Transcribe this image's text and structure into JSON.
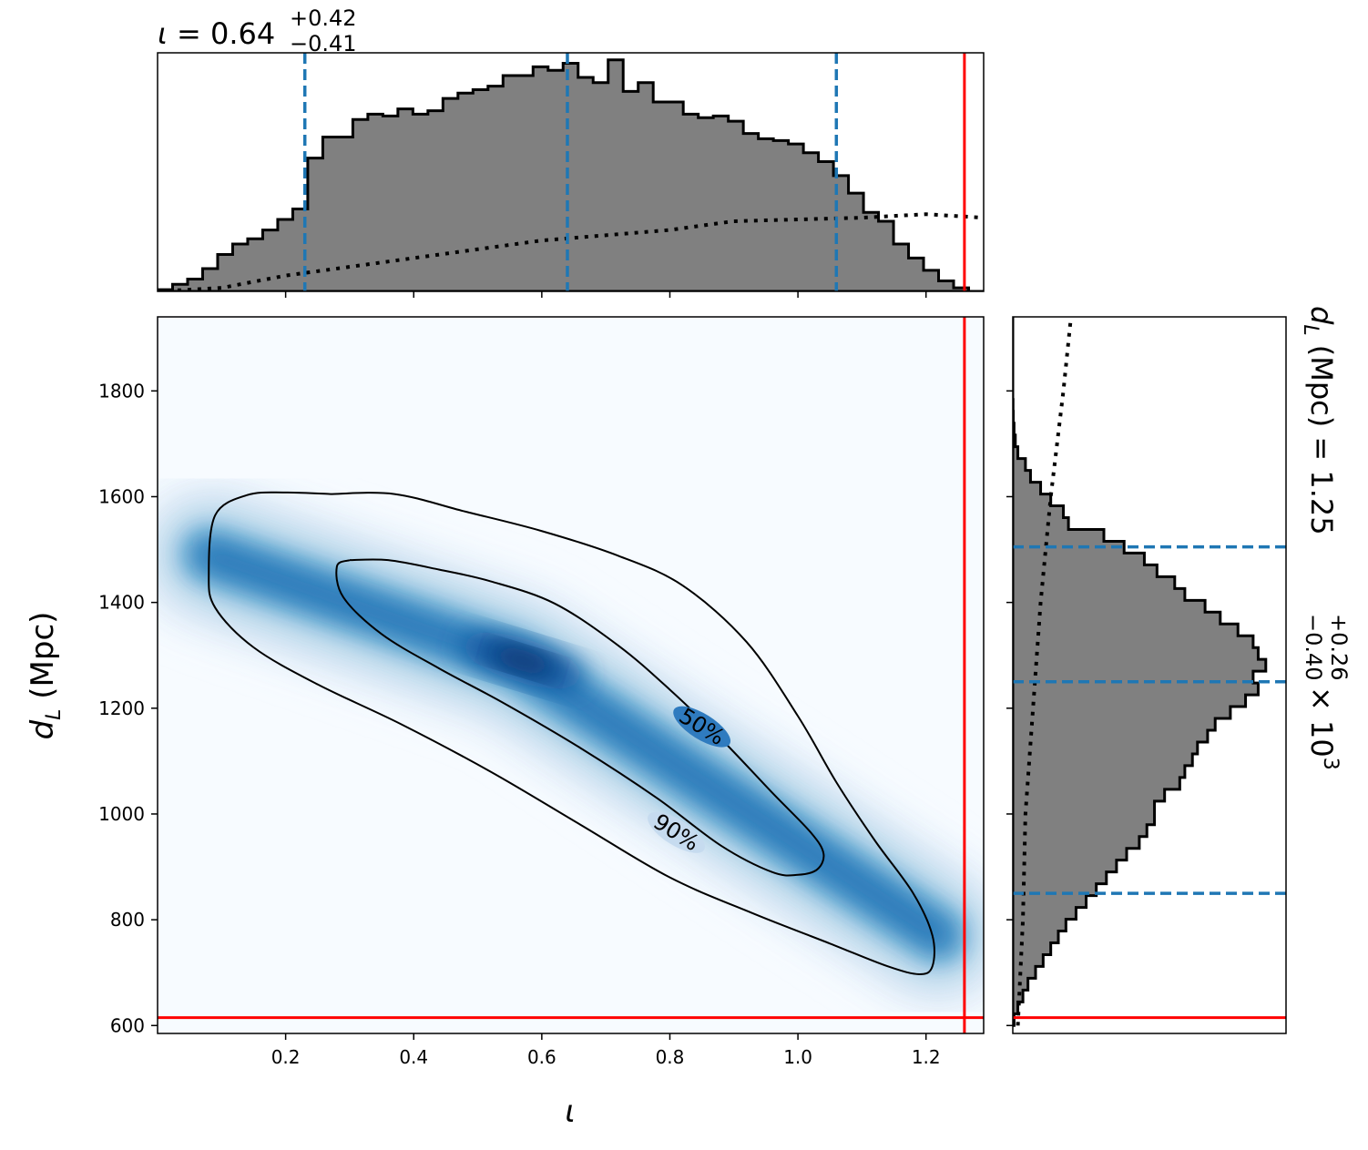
{
  "figure": {
    "top_title": {
      "symbol": "ι",
      "eq": " = ",
      "median": "0.64",
      "plus": "+0.42",
      "minus": "−0.41"
    },
    "side_title": {
      "symbol": "d",
      "sub": "L",
      "units": " (Mpc) = 1.25",
      "plus": "+0.26",
      "minus": "−0.40",
      "times": " × 10",
      "exp": "3"
    },
    "xlabel": "ι",
    "ylabel": {
      "symbol": "d",
      "sub": "L",
      "units": " (Mpc)"
    }
  },
  "chart_data": [
    {
      "name": "iota-marginal",
      "type": "bar",
      "bin_edges": [
        0.0,
        1.29
      ],
      "counts": [
        0.01,
        0.04,
        0.07,
        0.13,
        0.21,
        0.27,
        0.3,
        0.35,
        0.41,
        0.47,
        0.76,
        0.88,
        0.88,
        0.98,
        1.01,
        1.0,
        1.04,
        1.01,
        1.03,
        1.1,
        1.13,
        1.15,
        1.17,
        1.23,
        1.23,
        1.28,
        1.26,
        1.3,
        1.22,
        1.19,
        1.32,
        1.14,
        1.19,
        1.08,
        1.08,
        1.01,
        0.99,
        1.0,
        0.97,
        0.9,
        0.87,
        0.86,
        0.84,
        0.79,
        0.74,
        0.66,
        0.56,
        0.45,
        0.4,
        0.27,
        0.19,
        0.12,
        0.06,
        0.02,
        0.0
      ],
      "prior_curve": {
        "x": [
          0.0,
          0.1,
          0.2,
          0.3,
          0.4,
          0.5,
          0.6,
          0.7,
          0.8,
          0.9,
          1.0,
          1.1,
          1.2,
          1.29
        ],
        "y": [
          0.0,
          0.02,
          0.09,
          0.14,
          0.19,
          0.24,
          0.29,
          0.32,
          0.35,
          0.4,
          0.41,
          0.42,
          0.44,
          0.42
        ]
      },
      "quantiles": [
        0.23,
        0.64,
        1.06
      ],
      "injection": 1.26,
      "xlim": [
        0.0,
        1.29
      ],
      "xticks": [
        0.2,
        0.4,
        0.6,
        0.8,
        1.0,
        1.2
      ]
    },
    {
      "name": "joint-posterior",
      "type": "heatmap",
      "xlim": [
        0.0,
        1.29
      ],
      "ylim": [
        585,
        1940
      ],
      "xticks": [
        "0.2",
        "0.4",
        "0.6",
        "0.8",
        "1.0",
        "1.2"
      ],
      "xtick_values": [
        0.2,
        0.4,
        0.6,
        0.8,
        1.0,
        1.2
      ],
      "yticks": [
        "600",
        "800",
        "1000",
        "1200",
        "1400",
        "1600",
        "1800"
      ],
      "ytick_values": [
        600,
        800,
        1000,
        1200,
        1400,
        1600,
        1800
      ],
      "colormap": [
        "#f7fbff",
        "#deebf7",
        "#c6dbef",
        "#9ecae1",
        "#6baed6",
        "#4292c6",
        "#2171b5",
        "#08519c",
        "#08306b"
      ],
      "density_ridge": {
        "x": [
          0.08,
          0.56,
          1.22
        ],
        "y": [
          1490,
          1290,
          770
        ]
      },
      "contours": [
        {
          "level": "90%",
          "label": "90%",
          "label_x": 0.81,
          "label_y": 965,
          "x": [
            0.27,
            0.37,
            0.48,
            0.6,
            0.72,
            0.82,
            0.92,
            1.0,
            1.06,
            1.12,
            1.18,
            1.21,
            1.21,
            1.19,
            1.14,
            1.05,
            0.93,
            0.8,
            0.66,
            0.52,
            0.38,
            0.25,
            0.15,
            0.09,
            0.08,
            0.09,
            0.14,
            0.2,
            0.27
          ],
          "y": [
            1605,
            1605,
            1572,
            1535,
            1488,
            1432,
            1325,
            1185,
            1060,
            950,
            850,
            770,
            712,
            697,
            712,
            755,
            812,
            880,
            980,
            1080,
            1170,
            1245,
            1315,
            1390,
            1455,
            1565,
            1603,
            1608,
            1605
          ]
        },
        {
          "level": "50%",
          "label": "50%",
          "label_x": 0.85,
          "label_y": 1165,
          "x": [
            0.3,
            0.36,
            0.44,
            0.52,
            0.62,
            0.72,
            0.8,
            0.88,
            0.96,
            1.02,
            1.04,
            1.03,
            1.0,
            0.96,
            0.88,
            0.78,
            0.66,
            0.54,
            0.44,
            0.35,
            0.29,
            0.28,
            0.3
          ],
          "y": [
            1480,
            1480,
            1462,
            1440,
            1398,
            1318,
            1235,
            1142,
            1040,
            965,
            925,
            895,
            885,
            890,
            940,
            1030,
            1125,
            1210,
            1275,
            1340,
            1410,
            1468,
            1480
          ]
        }
      ],
      "injection": {
        "x": 1.26,
        "y": 615
      }
    },
    {
      "name": "dl-marginal",
      "type": "bar",
      "orientation": "horizontal",
      "bin_edges": [
        600,
        1940
      ],
      "counts": [
        0.005,
        0.02,
        0.04,
        0.06,
        0.09,
        0.12,
        0.15,
        0.18,
        0.21,
        0.25,
        0.29,
        0.33,
        0.37,
        0.41,
        0.45,
        0.5,
        0.53,
        0.56,
        0.56,
        0.6,
        0.66,
        0.68,
        0.71,
        0.73,
        0.77,
        0.8,
        0.86,
        0.92,
        0.97,
        0.95,
        1.0,
        0.97,
        0.95,
        0.89,
        0.82,
        0.76,
        0.68,
        0.64,
        0.57,
        0.52,
        0.44,
        0.36,
        0.22,
        0.2,
        0.15,
        0.11,
        0.07,
        0.05,
        0.02,
        0.01,
        0.005,
        0.002,
        0.001,
        0.0,
        0.0,
        0.0,
        0.0,
        0.0,
        0.0,
        0.0
      ],
      "prior_curve": {
        "d": [
          600,
          800,
          1000,
          1200,
          1400,
          1600,
          1800,
          1940
        ],
        "y": [
          0.02,
          0.04,
          0.05,
          0.08,
          0.11,
          0.15,
          0.2,
          0.23
        ]
      },
      "quantiles": [
        850,
        1250,
        1505
      ],
      "injection": 615,
      "ylim": [
        585,
        1940
      ]
    }
  ]
}
